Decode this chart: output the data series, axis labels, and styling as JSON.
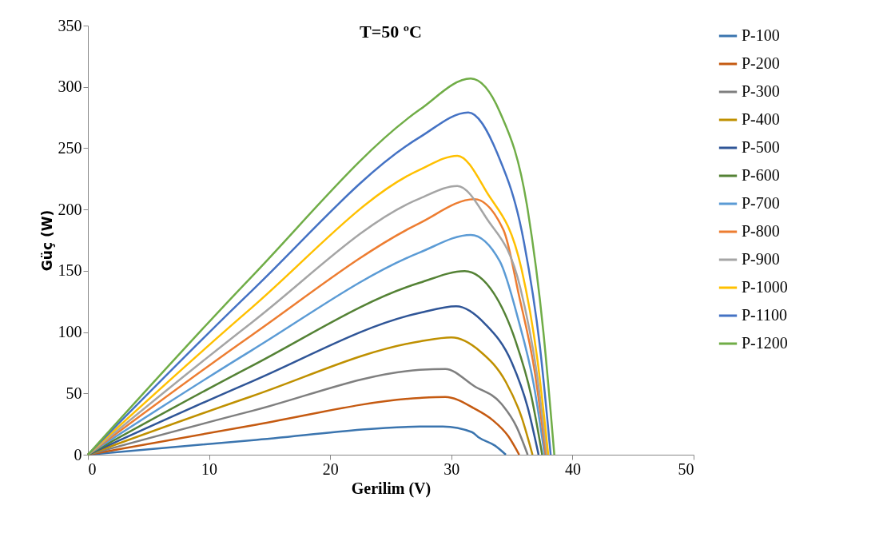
{
  "chart_data": {
    "type": "line",
    "title": "T=50 ºC",
    "xlabel": "Gerilim (V)",
    "ylabel": "Güç (W)",
    "xlim": [
      0,
      50
    ],
    "xticks": [
      0,
      10,
      20,
      30,
      40,
      50
    ],
    "ylim": [
      0,
      350
    ],
    "yticks": [
      0,
      50,
      100,
      150,
      200,
      250,
      300,
      350
    ],
    "grid": false,
    "legend": "right",
    "marker": "none",
    "line_style": "solid",
    "series": [
      {
        "name": "P-100",
        "color": "#3b75af",
        "x": [
          0,
          13.5,
          27.4,
          29.3,
          31.7,
          32.3,
          33.6,
          34.5
        ],
        "values": [
          0,
          11.8,
          22.9,
          23,
          18.4,
          13.8,
          7.4,
          0
        ]
      },
      {
        "name": "P-200",
        "color": "#c55a11",
        "x": [
          0,
          13.5,
          27.4,
          29.5,
          31.9,
          33.4,
          34.7,
          35.6
        ],
        "values": [
          0,
          23.8,
          46.3,
          47.1,
          37.7,
          28.3,
          15.1,
          0
        ]
      },
      {
        "name": "P-300",
        "color": "#7f7f7f",
        "x": [
          0,
          13.5,
          27.4,
          29.5,
          31.9,
          34.1,
          35.4,
          36.3
        ],
        "values": [
          0,
          35.6,
          69.2,
          69.9,
          55.9,
          41.9,
          22.4,
          0
        ]
      },
      {
        "name": "P-400",
        "color": "#bf9000",
        "x": [
          0,
          13.5,
          27.4,
          30.0,
          32.4,
          34.5,
          35.8,
          36.7
        ],
        "values": [
          0,
          47.6,
          92.4,
          95.6,
          84.1,
          59.3,
          30.6,
          0
        ]
      },
      {
        "name": "P-500",
        "color": "#2f5597",
        "x": [
          0,
          13.5,
          27.4,
          30.4,
          32.8,
          35.0,
          36.3,
          37.2
        ],
        "values": [
          0,
          59.6,
          115.7,
          121,
          106.5,
          75.0,
          38.7,
          0
        ]
      },
      {
        "name": "P-600",
        "color": "#548235",
        "x": [
          0,
          13.5,
          27.4,
          31.1,
          33.5,
          35.3,
          36.6,
          37.5
        ],
        "values": [
          0,
          72.3,
          140.3,
          149.7,
          131.7,
          92.8,
          47.9,
          0
        ]
      },
      {
        "name": "P-700",
        "color": "#5b9bd5",
        "x": [
          0,
          13.5,
          27.4,
          31.6,
          34.0,
          35.5,
          36.8,
          37.7
        ],
        "values": [
          0,
          85.0,
          165,
          179.3,
          157.8,
          111.2,
          57.4,
          0
        ]
      },
      {
        "name": "P-800",
        "color": "#ed7d31",
        "x": [
          0,
          13.5,
          27.4,
          31.9,
          34.3,
          35.6,
          36.9,
          37.8
        ],
        "values": [
          0,
          97.3,
          189,
          208.4,
          183.4,
          129.2,
          66.7,
          0
        ]
      },
      {
        "name": "P-900",
        "color": "#a5a5a5",
        "x": [
          0,
          13.5,
          27.4,
          30.5,
          32.9,
          35.7,
          37.0,
          37.9
        ],
        "values": [
          0,
          107.6,
          209,
          219.2,
          192.9,
          135.9,
          70.1,
          0
        ]
      },
      {
        "name": "P-1000",
        "color": "#ffc000",
        "x": [
          0,
          13.5,
          27.4,
          30.5,
          32.9,
          35.8,
          37.1,
          38.0
        ],
        "values": [
          0,
          119.7,
          232.5,
          243.8,
          214.5,
          151.2,
          78,
          0
        ]
      },
      {
        "name": "P-1100",
        "color": "#4472c4",
        "x": [
          0,
          13.5,
          27.4,
          31.4,
          33.8,
          36.0,
          37.3,
          38.2
        ],
        "values": [
          0,
          133.4,
          259,
          279.2,
          245.7,
          173.1,
          89.3,
          0
        ]
      },
      {
        "name": "P-1200",
        "color": "#70ad47",
        "x": [
          0,
          13.5,
          27.4,
          31.6,
          34.0,
          36.3,
          37.6,
          38.5
        ],
        "values": [
          0,
          145.0,
          281.5,
          306.8,
          279.6,
          200,
          100,
          0
        ]
      }
    ]
  }
}
